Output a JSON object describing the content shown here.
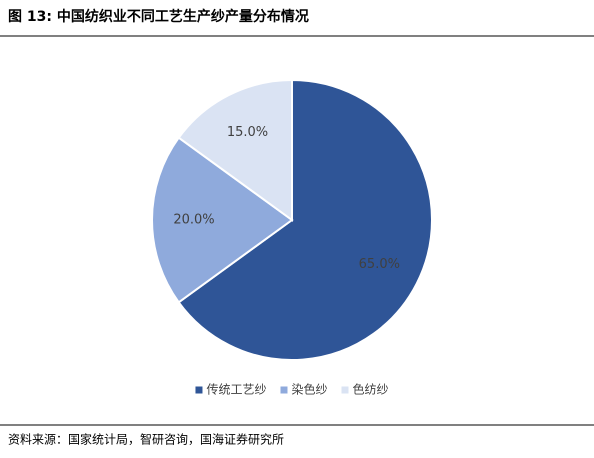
{
  "chart_data": {
    "type": "pie",
    "title": "图 13:  中国纺织业不同工艺生产纱产量分布情况",
    "categories": [
      "传统工艺纱",
      "染色纱",
      "色纺纱"
    ],
    "values": [
      65.0,
      20.0,
      15.0
    ],
    "value_labels": [
      "65.0%",
      "20.0%",
      "15.0%"
    ],
    "colors": [
      "#2f5597",
      "#8faadc",
      "#dae3f3"
    ],
    "legend": "bottom",
    "source": "资料来源：国家统计局，智研咨询，国海证券研究所"
  }
}
